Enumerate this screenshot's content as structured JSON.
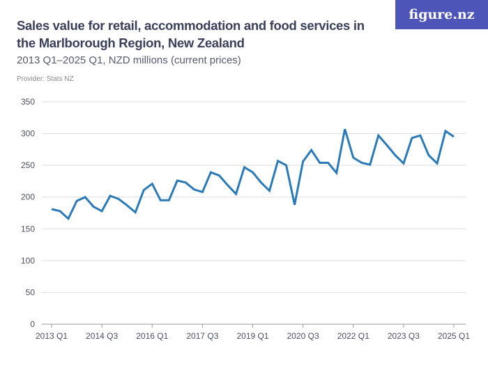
{
  "header": {
    "title": "Sales value for retail, accommodation and food services in the Marlborough Region, New Zealand",
    "subtitle": "2013 Q1–2025 Q1, NZD millions (current prices)",
    "provider": "Provider: Stats NZ",
    "logo": "figure.nz"
  },
  "colors": {
    "line": "#2a7ab9",
    "grid": "#dddddd",
    "logo_bg": "#4d55b8"
  },
  "chart_data": {
    "type": "line",
    "title": "Sales value for retail, accommodation and food services in the Marlborough Region, New Zealand",
    "xlabel": "",
    "ylabel": "",
    "ylim": [
      0,
      350
    ],
    "yticks": [
      0,
      50,
      100,
      150,
      200,
      250,
      300,
      350
    ],
    "grid": true,
    "xtick_labels": [
      "2013 Q1",
      "2014 Q3",
      "2016 Q1",
      "2017 Q3",
      "2019 Q1",
      "2020 Q3",
      "2022 Q1",
      "2023 Q3",
      "2025 Q1"
    ],
    "x_start": "2013 Q1",
    "x_end": "2025 Q1",
    "values": [
      181,
      178,
      166,
      194,
      200,
      185,
      178,
      202,
      197,
      187,
      176,
      211,
      221,
      195,
      195,
      226,
      223,
      212,
      208,
      239,
      234,
      219,
      205,
      247,
      239,
      223,
      210,
      257,
      250,
      188,
      256,
      274,
      254,
      254,
      238,
      307,
      262,
      254,
      251,
      297,
      282,
      266,
      253,
      293,
      297,
      266,
      253,
      304,
      295
    ]
  }
}
